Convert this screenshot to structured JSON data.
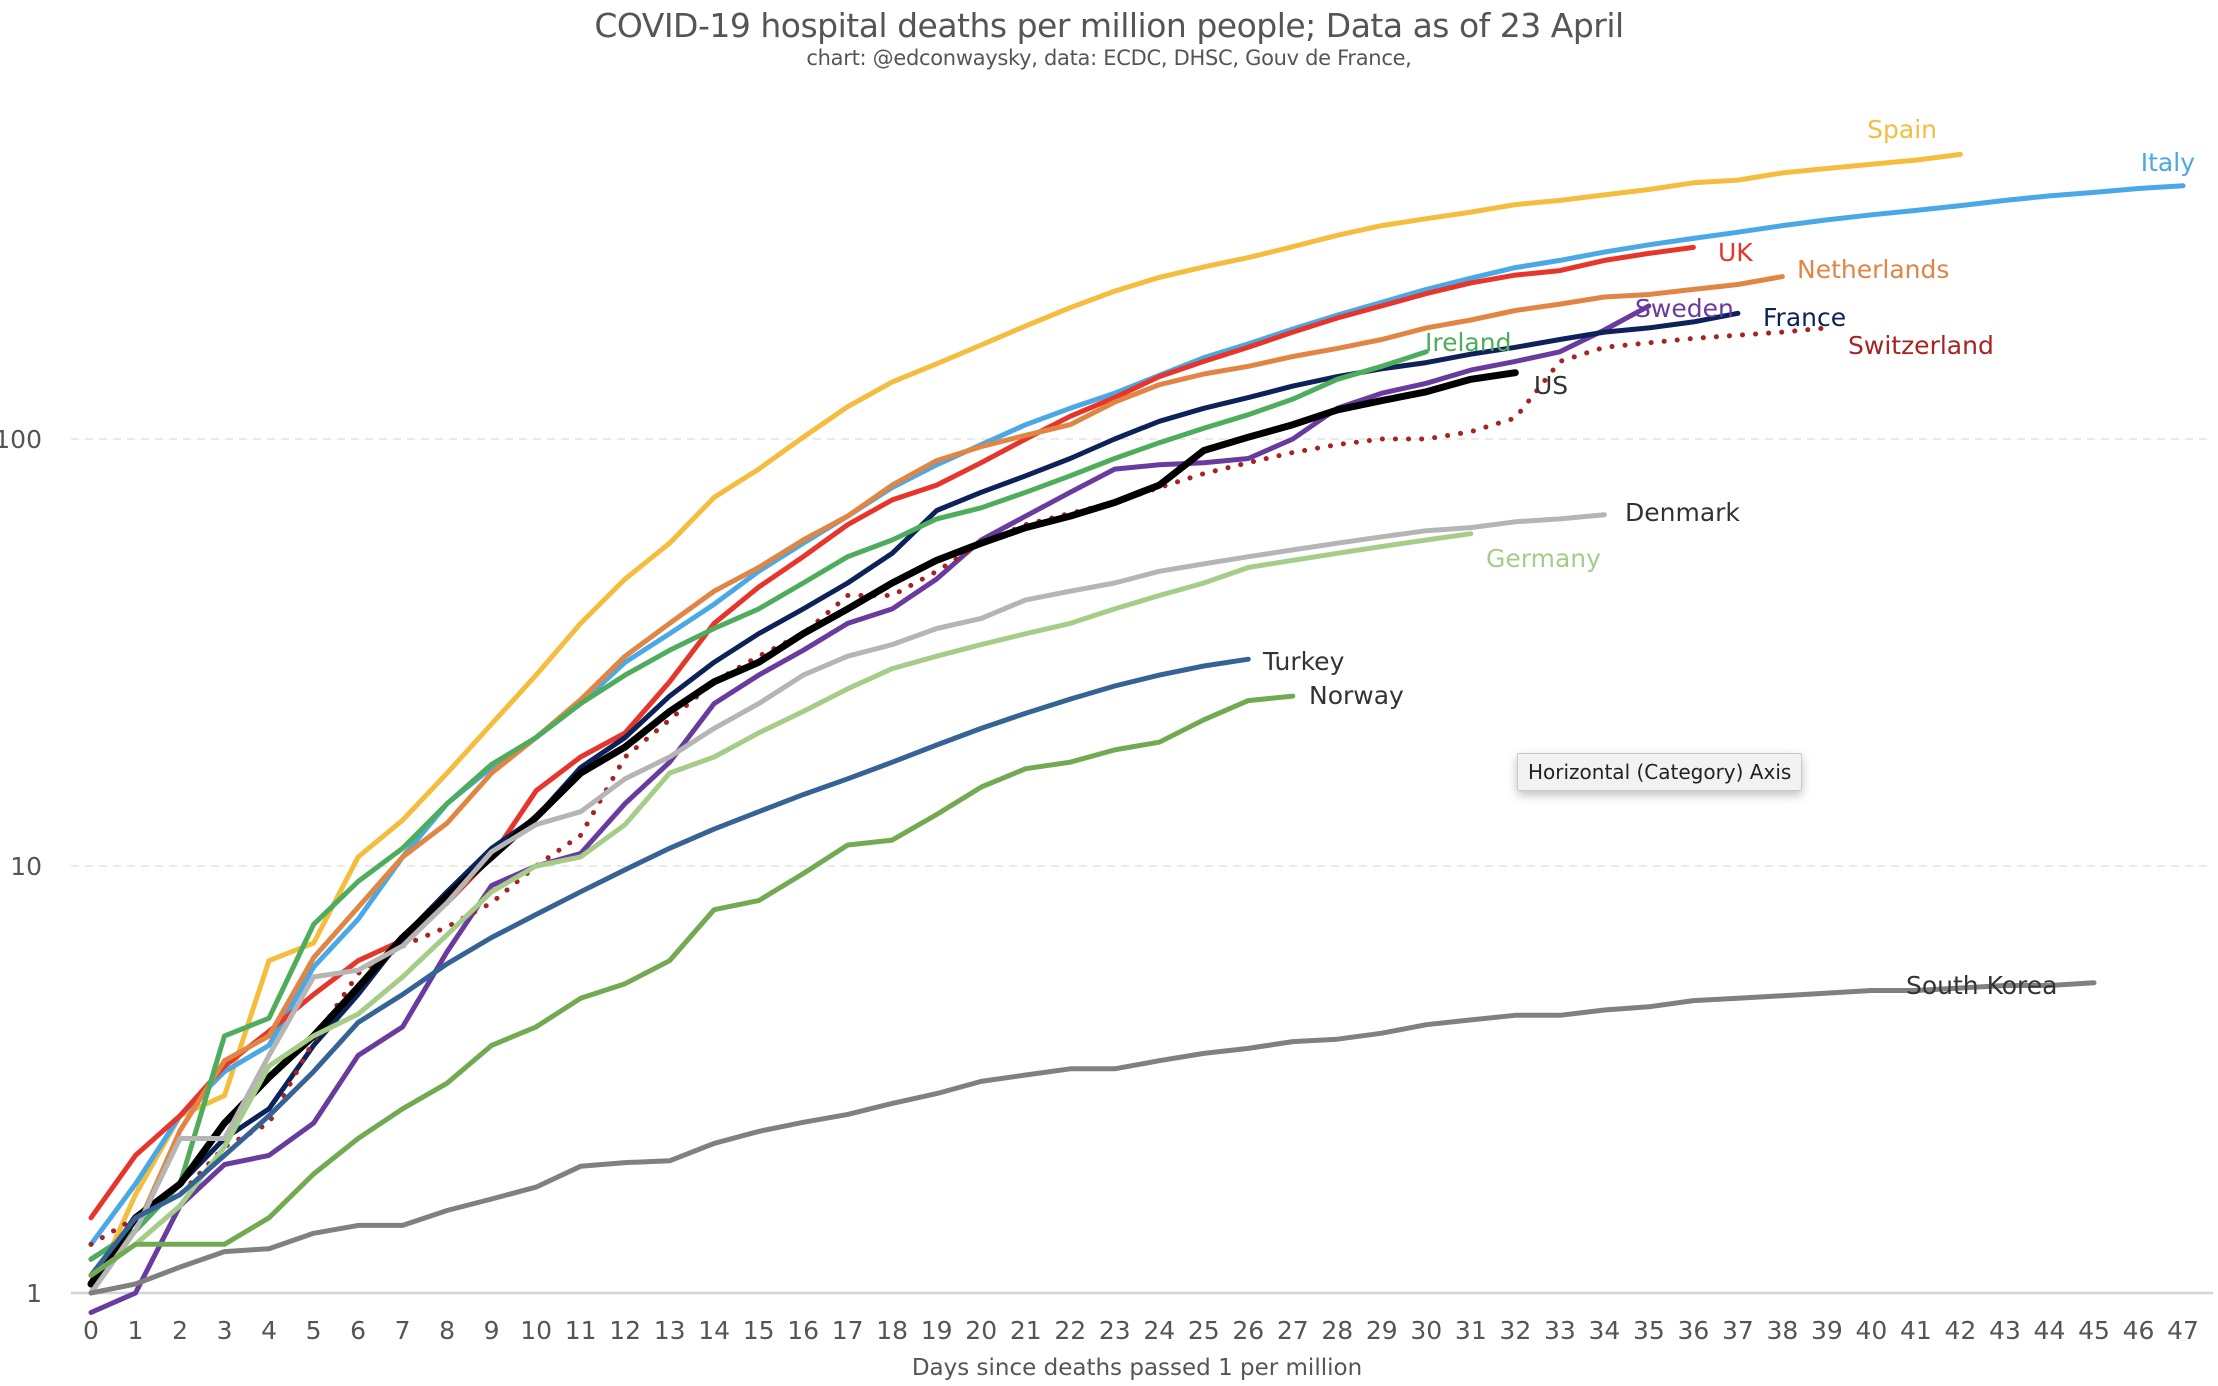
{
  "chart_data": {
    "type": "line",
    "title": "COVID-19 hospital deaths per million people; Data as of 23 April",
    "subtitle": "chart: @edconwaysky, data: ECDC, DHSC, Gouv de France,",
    "xlabel": "Days since deaths passed 1 per million",
    "ylabel": "",
    "yscale": "log",
    "ylim": [
      1,
      600
    ],
    "xlim": [
      0,
      47
    ],
    "x": [
      0,
      1,
      2,
      3,
      4,
      5,
      6,
      7,
      8,
      9,
      10,
      11,
      12,
      13,
      14,
      15,
      16,
      17,
      18,
      19,
      20,
      21,
      22,
      23,
      24,
      25,
      26,
      27,
      28,
      29,
      30,
      31,
      32,
      33,
      34,
      35,
      36,
      37,
      38,
      39,
      40,
      41,
      42,
      43,
      44,
      45,
      46,
      47
    ],
    "x_tick_labels": [
      "0",
      "1",
      "2",
      "3",
      "4",
      "5",
      "6",
      "7",
      "8",
      "9",
      "10",
      "11",
      "12",
      "13",
      "14",
      "15",
      "16",
      "17",
      "18",
      "19",
      "20",
      "21",
      "22",
      "23",
      "24",
      "25",
      "26",
      "27",
      "28",
      "29",
      "30",
      "31",
      "32",
      "33",
      "34",
      "35",
      "36",
      "37",
      "38",
      "39",
      "40",
      "41",
      "42",
      "43",
      "44",
      "45",
      "46",
      "47"
    ],
    "y_ticks": [
      1,
      10,
      100
    ],
    "y_tick_labels": [
      "1",
      "10",
      "100"
    ],
    "grid": "horizontal-dashed",
    "legend": "inline-labels-at-line-ends",
    "series": [
      {
        "name": "Spain",
        "color": "#f4bd3e",
        "style": "solid",
        "values": [
          1.0,
          1.7,
          2.6,
          2.9,
          6.0,
          6.6,
          10.5,
          12.8,
          16.5,
          21.5,
          28,
          37,
          47,
          57,
          73,
          85,
          101,
          119,
          136,
          150,
          166,
          184,
          203,
          222,
          239,
          253,
          266,
          282,
          300,
          316,
          328,
          340,
          354,
          362,
          373,
          384,
          398,
          404,
          420,
          430,
          440,
          450,
          464
        ]
      },
      {
        "name": "Italy",
        "color": "#4aa8e6",
        "style": "solid",
        "values": [
          1.3,
          1.8,
          2.6,
          3.3,
          3.8,
          5.8,
          7.5,
          10.5,
          14,
          17,
          20,
          24,
          30,
          35,
          41,
          49,
          57,
          66,
          77,
          87,
          97,
          108,
          118,
          128,
          141,
          155,
          167,
          181,
          195,
          209,
          224,
          238,
          252,
          262,
          274,
          285,
          295,
          305,
          316,
          326,
          335,
          343,
          352,
          362,
          371,
          378,
          386,
          392
        ]
      },
      {
        "name": "UK",
        "color": "#e6352a",
        "style": "solid",
        "values": [
          1.5,
          2.1,
          2.6,
          3.4,
          4.1,
          5.0,
          6.0,
          6.7,
          8.2,
          10.5,
          15,
          18,
          20.5,
          27,
          37,
          45,
          53,
          63,
          72,
          78,
          88,
          100,
          113,
          125,
          140,
          152,
          164,
          178,
          192,
          205,
          219,
          232,
          242,
          248,
          262,
          272,
          281
        ]
      },
      {
        "name": "Netherlands",
        "color": "#e08543",
        "style": "solid",
        "values": [
          1.1,
          1.4,
          2.4,
          3.5,
          4.0,
          6.1,
          8.0,
          10.5,
          12.6,
          16.5,
          20,
          24.5,
          31,
          37,
          44,
          50,
          58,
          66,
          78,
          89,
          96,
          102,
          108,
          122,
          134,
          142,
          148,
          156,
          163,
          171,
          182,
          190,
          200,
          207,
          215,
          218,
          224,
          230,
          240
        ]
      },
      {
        "name": "Sweden",
        "color": "#6a3b9f",
        "style": "solid",
        "values": [
          0.9,
          1.0,
          1.6,
          2.0,
          2.1,
          2.5,
          3.6,
          4.2,
          6.3,
          9.0,
          10,
          10.7,
          14,
          17.5,
          24,
          28,
          32,
          37,
          40,
          47,
          58,
          66,
          75,
          85,
          87,
          88,
          90,
          100,
          118,
          128,
          135,
          145,
          152,
          160,
          180,
          205
        ]
      },
      {
        "name": "France",
        "color": "#0d2258",
        "style": "solid",
        "values": [
          1.2,
          1.4,
          1.8,
          2.3,
          2.7,
          3.8,
          5.0,
          6.8,
          8.7,
          11.0,
          13,
          17,
          20,
          25,
          30,
          35,
          40,
          46,
          54,
          68,
          75,
          82,
          90,
          100,
          110,
          118,
          125,
          133,
          140,
          146,
          151,
          158,
          164,
          171,
          178,
          182,
          188,
          197
        ]
      },
      {
        "name": "Switzerland",
        "color": "#a62323",
        "style": "dotted",
        "values": [
          1.3,
          1.5,
          1.7,
          2.2,
          2.5,
          3.9,
          5.6,
          6.5,
          7.2,
          8.2,
          10,
          11.8,
          18,
          22,
          27,
          31,
          35,
          43,
          43,
          49,
          57,
          63,
          67,
          71,
          77,
          83,
          88,
          93,
          97,
          100,
          100,
          104,
          112,
          152,
          164,
          168,
          172,
          175,
          178,
          182
        ]
      },
      {
        "name": "Ireland",
        "color": "#4ead5c",
        "style": "solid",
        "values": [
          1.2,
          1.4,
          1.8,
          4.0,
          4.4,
          7.3,
          9.2,
          11.0,
          14.0,
          17.3,
          20,
          24,
          28,
          32,
          36,
          40,
          46,
          53,
          58,
          65,
          69,
          75,
          82,
          90,
          98,
          106,
          114,
          124,
          138,
          148,
          160
        ]
      },
      {
        "name": "US",
        "color": "#000000",
        "style": "solid",
        "values": [
          1.05,
          1.5,
          1.8,
          2.5,
          3.2,
          4.0,
          5.2,
          6.8,
          8.5,
          10.5,
          13,
          16.5,
          19,
          23,
          27,
          30,
          35,
          40,
          46,
          52,
          57,
          62,
          66,
          71,
          78,
          94,
          101,
          108,
          117,
          123,
          129,
          138,
          143
        ]
      },
      {
        "name": "Denmark",
        "color": "#b5b5b5",
        "style": "solid",
        "values": [
          1.0,
          1.4,
          2.3,
          2.3,
          3.6,
          5.5,
          5.7,
          6.5,
          8.2,
          10.8,
          12.5,
          13.4,
          16,
          18,
          21,
          24,
          28,
          31,
          33,
          36,
          38,
          42,
          44,
          46,
          49,
          51,
          53,
          55,
          57,
          59,
          61,
          62,
          64,
          65,
          66.5
        ]
      },
      {
        "name": "Germany",
        "color": "#a6cd88",
        "style": "solid",
        "values": [
          1.1,
          1.3,
          1.6,
          2.2,
          3.4,
          4.0,
          4.5,
          5.5,
          6.9,
          8.7,
          10,
          10.5,
          12.5,
          16.5,
          18,
          20.5,
          23,
          26,
          29,
          31,
          33,
          35,
          37,
          40,
          43,
          46,
          50,
          52,
          54,
          56,
          58,
          60
        ]
      },
      {
        "name": "Turkey",
        "color": "#356396",
        "style": "solid",
        "values": [
          1.1,
          1.5,
          1.7,
          2.1,
          2.6,
          3.3,
          4.3,
          5.0,
          5.9,
          6.8,
          7.7,
          8.7,
          9.8,
          11,
          12.2,
          13.4,
          14.7,
          16,
          17.5,
          19.2,
          21,
          22.8,
          24.6,
          26.4,
          28,
          29.4,
          30.5
        ]
      },
      {
        "name": "Norway",
        "color": "#72aa52",
        "style": "solid",
        "values": [
          1.1,
          1.3,
          1.3,
          1.3,
          1.5,
          1.9,
          2.3,
          2.7,
          3.1,
          3.8,
          4.2,
          4.9,
          5.3,
          6.0,
          7.9,
          8.3,
          9.6,
          11.2,
          11.5,
          13.2,
          15.3,
          16.9,
          17.5,
          18.7,
          19.5,
          22,
          24.4,
          25
        ]
      },
      {
        "name": "South Korea",
        "color": "#808080",
        "style": "solid",
        "values": [
          1.0,
          1.05,
          1.15,
          1.25,
          1.27,
          1.38,
          1.44,
          1.44,
          1.56,
          1.66,
          1.77,
          1.98,
          2.02,
          2.04,
          2.24,
          2.39,
          2.51,
          2.62,
          2.78,
          2.93,
          3.13,
          3.24,
          3.35,
          3.35,
          3.5,
          3.64,
          3.74,
          3.88,
          3.93,
          4.06,
          4.25,
          4.36,
          4.47,
          4.47,
          4.6,
          4.68,
          4.84,
          4.9,
          4.97,
          5.04,
          5.11,
          5.11,
          5.18,
          5.25,
          5.25,
          5.33
        ]
      }
    ]
  },
  "tooltip": {
    "text": "Horizontal (Category) Axis"
  }
}
